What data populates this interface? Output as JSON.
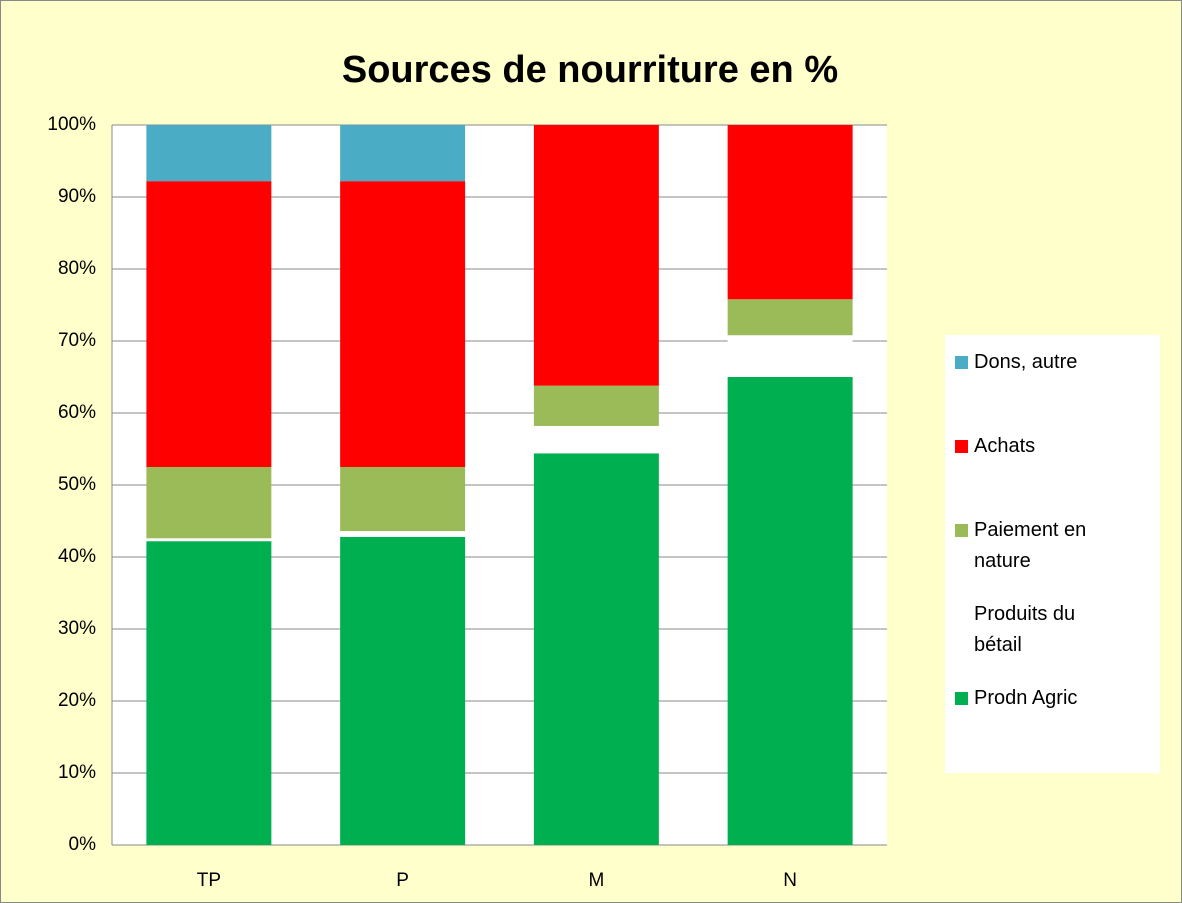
{
  "chart_data": {
    "type": "stacked_bar",
    "title": "Sources de nourriture en %",
    "categories": [
      "TP",
      "P",
      "M",
      "N"
    ],
    "series": [
      {
        "name": "Prodn Agric",
        "color": "#00b050",
        "values": [
          42.2,
          42.8,
          54.4,
          65.0
        ]
      },
      {
        "name": "Produits du bétail",
        "color": "#ffffff",
        "values": [
          0.4,
          0.8,
          3.8,
          5.8
        ]
      },
      {
        "name": "Paiement en nature",
        "color": "#9bbb59",
        "values": [
          9.9,
          8.9,
          5.6,
          5.0
        ]
      },
      {
        "name": "Achats",
        "color": "#ff0000",
        "values": [
          39.7,
          39.7,
          36.2,
          24.2
        ]
      },
      {
        "name": "Dons, autre",
        "color": "#4bacc6",
        "values": [
          7.8,
          7.8,
          0,
          0
        ]
      }
    ],
    "ylim": [
      0,
      100
    ],
    "yticks": [
      {
        "value": 0,
        "label": "0%"
      },
      {
        "value": 10,
        "label": "10%"
      },
      {
        "value": 20,
        "label": "20%"
      },
      {
        "value": 30,
        "label": "30%"
      },
      {
        "value": 40,
        "label": "40%"
      },
      {
        "value": 50,
        "label": "50%"
      },
      {
        "value": 60,
        "label": "60%"
      },
      {
        "value": 70,
        "label": "70%"
      },
      {
        "value": 80,
        "label": "80%"
      },
      {
        "value": 90,
        "label": "90%"
      },
      {
        "value": 100,
        "label": "100%"
      }
    ],
    "grid": true,
    "legend": "right"
  }
}
